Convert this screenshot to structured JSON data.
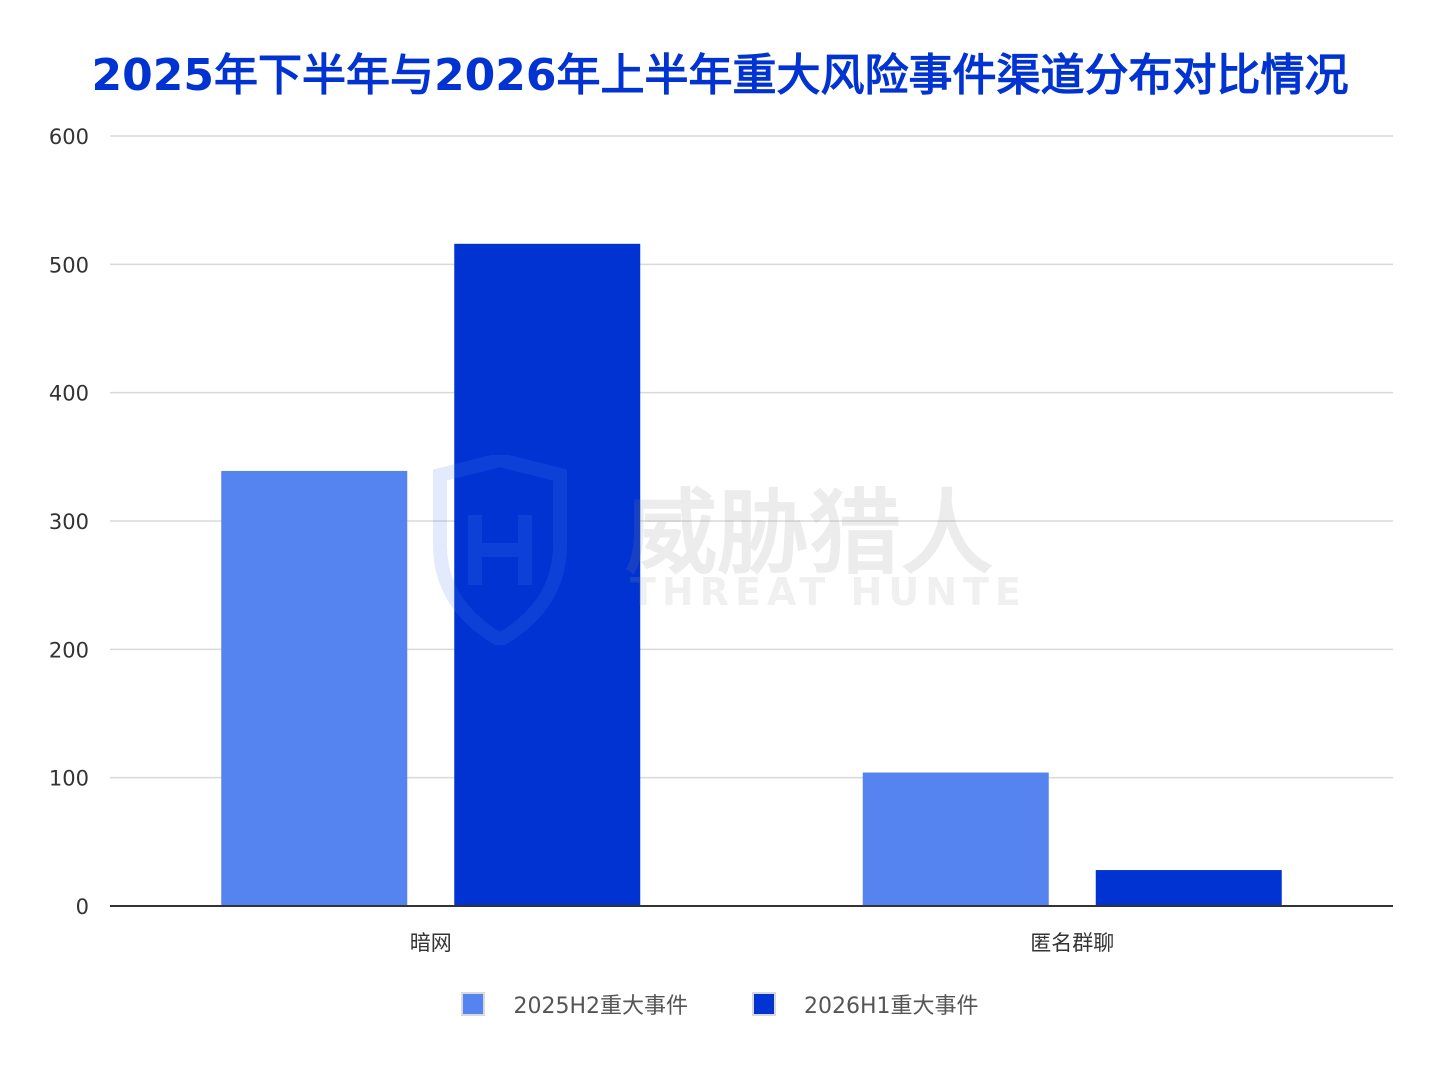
{
  "chart_data": {
    "type": "bar",
    "title": "2025年下半年与2026年上半年重大风险事件渠道分布对比情况",
    "categories": [
      "暗网",
      "匿名群聊"
    ],
    "series": [
      {
        "name": "2025H2重大事件",
        "values": [
          339,
          104
        ],
        "color": "#5584f0"
      },
      {
        "name": "2026H1重大事件",
        "values": [
          516,
          28
        ],
        "color": "#0033d1"
      }
    ],
    "ylim": [
      0,
      600
    ],
    "yticks": [
      0,
      100,
      200,
      300,
      400,
      500,
      600
    ],
    "grid": true,
    "legend_position": "bottom",
    "xlabel": "",
    "ylabel": ""
  },
  "watermark": {
    "brand_text": "威胁猎人",
    "brand_subtext": "THREAT HUNTER",
    "icon": "shield-logo-icon"
  },
  "colors": {
    "title": "#0033d1",
    "grid": "#d9d9d9",
    "axis": "#333333"
  }
}
